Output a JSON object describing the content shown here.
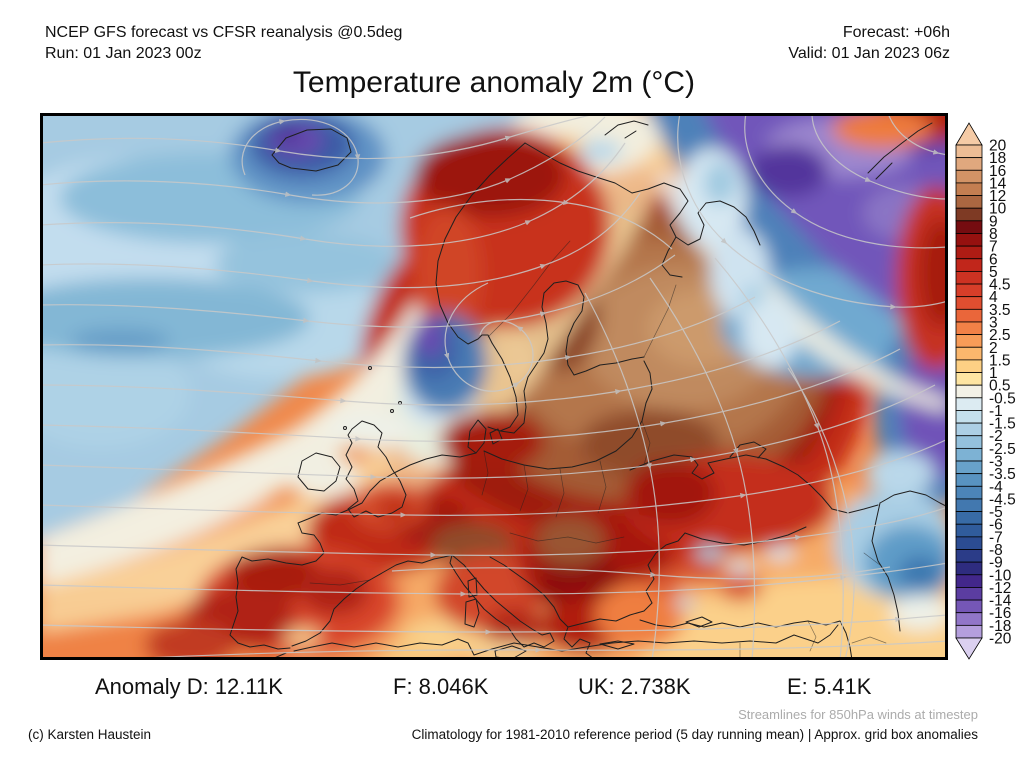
{
  "header": {
    "model_line": "NCEP GFS forecast vs CFSR reanalysis @0.5deg",
    "run_line": "Run: 01 Jan 2023 00z",
    "forecast_line": "Forecast: +06h",
    "valid_line": "Valid: 01 Jan 2023 06z"
  },
  "title": "Temperature anomaly 2m (°C)",
  "stats": {
    "d": "Anomaly D: 12.11K",
    "f": "F: 8.046K",
    "uk": "UK: 2.738K",
    "e": "E: 5.41K"
  },
  "footer": {
    "streamlines_note": "Streamlines for 850hPa winds at timestep",
    "copyright": "(c) Karsten Haustein",
    "climatology_note": "Climatology for 1981-2010 reference period (5 day running mean) | Approx. grid box anomalies"
  },
  "colorbar": {
    "unit": "°C",
    "above_max_color": "#f5cba6",
    "below_min_color": "#dbd0f0",
    "boundary_labels": [
      "20",
      "18",
      "16",
      "14",
      "12",
      "10",
      "9",
      "8",
      "7",
      "6",
      "5",
      "4.5",
      "4",
      "3.5",
      "3",
      "2.5",
      "2",
      "1.5",
      "1",
      "0.5",
      "-0.5",
      "-1",
      "-1.5",
      "-2",
      "-2.5",
      "-3",
      "-3.5",
      "-4",
      "-4.5",
      "-5",
      "-6",
      "-7",
      "-8",
      "-9",
      "-10",
      "-12",
      "-14",
      "-16",
      "-18",
      "-20"
    ],
    "segment_colors": [
      "#edbd95",
      "#e0a87e",
      "#d29366",
      "#c37e51",
      "#ab6741",
      "#7e3a24",
      "#750c10",
      "#96110f",
      "#ae1c14",
      "#c1261b",
      "#cd3222",
      "#d73e29",
      "#e04e30",
      "#ea663a",
      "#f28147",
      "#f89c58",
      "#fbb76d",
      "#fdd084",
      "#fee5a2",
      "#f3f1e6",
      "#dcebf2",
      "#c4e0ed",
      "#accfe5",
      "#94c1dd",
      "#7db2d4",
      "#68a2ca",
      "#5893c1",
      "#4c85b8",
      "#4278af",
      "#386ba6",
      "#305c9c",
      "#2b4c92",
      "#2b3c88",
      "#2e2c7f",
      "#42278b",
      "#5b3da1",
      "#7557b6",
      "#9176c8",
      "#b49fdd"
    ]
  },
  "map_palette": {
    "warm_base": "#f0884a",
    "cold_atlantic": "#a6cbe2",
    "warm_core_brown": "#b4764c",
    "cold_core_purple": "#53349c",
    "streamline_gray": "#c9c9c9"
  }
}
